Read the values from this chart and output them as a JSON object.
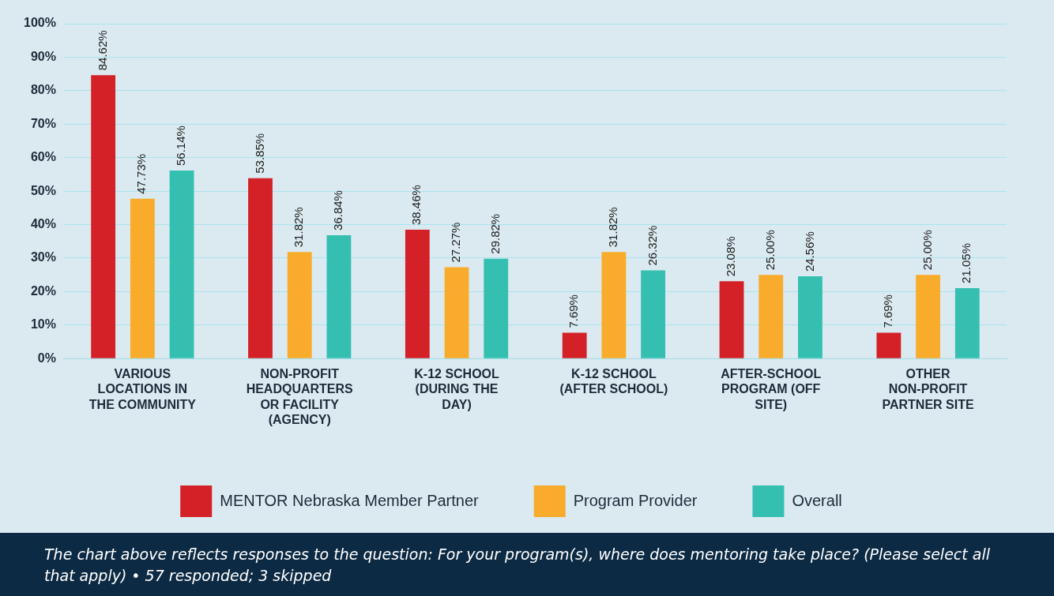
{
  "chart_data": {
    "type": "bar",
    "categories": [
      "VARIOUS LOCATIONS IN THE COMMUNITY",
      "NON-PROFIT HEADQUARTERS OR FACILITY (AGENCY)",
      "K-12 SCHOOL (DURING THE DAY)",
      "K-12 SCHOOL (AFTER SCHOOL)",
      "AFTER-SCHOOL PROGRAM (OFF SITE)",
      "OTHER NON-PROFIT PARTNER SITE"
    ],
    "series": [
      {
        "name": "MENTOR Nebraska Member Partner",
        "color": "#d42027",
        "values": [
          84.62,
          53.85,
          38.46,
          7.69,
          23.08,
          7.69
        ],
        "value_labels": [
          "84.62%",
          "53.85%",
          "38.46%",
          "7.69%",
          "23.08%",
          "7.69%"
        ]
      },
      {
        "name": "Program Provider",
        "color": "#f9ab2b",
        "values": [
          47.73,
          31.82,
          27.27,
          31.82,
          25.0,
          25.0
        ],
        "value_labels": [
          "47.73%",
          "31.82%",
          "27.27%",
          "31.82%",
          "25.00%",
          "25.00%"
        ]
      },
      {
        "name": "Overall",
        "color": "#35bfb1",
        "values": [
          56.14,
          36.84,
          29.82,
          26.32,
          24.56,
          21.05
        ],
        "value_labels": [
          "56.14%",
          "36.84%",
          "29.82%",
          "26.32%",
          "24.56%",
          "21.05%"
        ]
      }
    ],
    "ylim": [
      0,
      100
    ],
    "yticks": [
      {
        "value": 0,
        "label": "0%"
      },
      {
        "value": 10,
        "label": "10%"
      },
      {
        "value": 20,
        "label": "20%"
      },
      {
        "value": 30,
        "label": "30%"
      },
      {
        "value": 40,
        "label": "40%"
      },
      {
        "value": 50,
        "label": "50%"
      },
      {
        "value": 60,
        "label": "60%"
      },
      {
        "value": 70,
        "label": "70%"
      },
      {
        "value": 80,
        "label": "80%"
      },
      {
        "value": 90,
        "label": "90%"
      },
      {
        "value": 100,
        "label": "100%"
      }
    ],
    "grid": "y",
    "legend": "bottom",
    "annotations": [
      "The chart above reflects responses to the question: For your program(s), where does mentoring take place? (Please select all that apply) • 57 responded; 3 skipped"
    ]
  }
}
